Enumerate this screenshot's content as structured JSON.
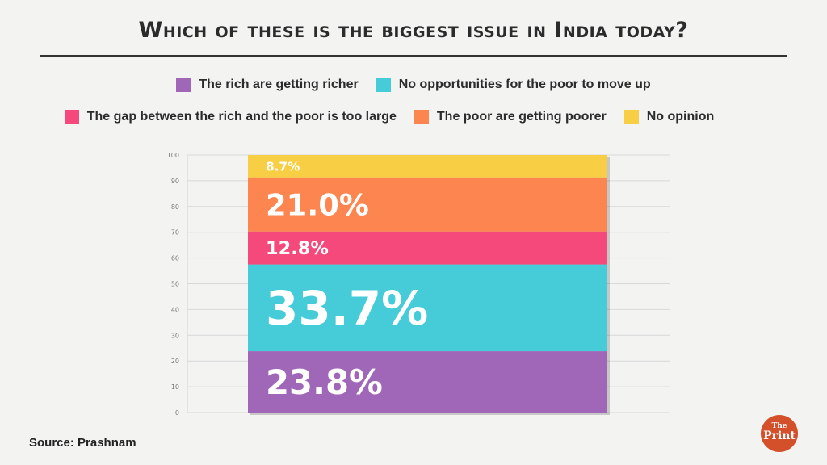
{
  "title": "Which of these is the biggest issue in India today?",
  "source": "Source: Prashnam",
  "logo": {
    "line1": "The",
    "line2": "Print",
    "color": "#d4502a"
  },
  "chart_data": {
    "type": "bar",
    "stacked": true,
    "title": "Which of these is the biggest issue in India today?",
    "ylim": [
      0,
      100
    ],
    "yticks": [
      0,
      10,
      20,
      30,
      40,
      50,
      60,
      70,
      80,
      90,
      100
    ],
    "grid": true,
    "legend_placement": "top",
    "series": [
      {
        "name": "The rich are getting richer",
        "value": 23.8,
        "label": "23.8%",
        "color": "#a066b8"
      },
      {
        "name": "No opportunities for the poor to move up",
        "value": 33.7,
        "label": "33.7%",
        "color": "#46cbd8"
      },
      {
        "name": "The gap between the rich and the poor is too large",
        "value": 12.8,
        "label": "12.8%",
        "color": "#f5497c"
      },
      {
        "name": "The poor are getting poorer",
        "value": 21.0,
        "label": "21.0%",
        "color": "#fd8650"
      },
      {
        "name": "No opinion",
        "value": 8.7,
        "label": "8.7%",
        "color": "#f8cf44"
      }
    ],
    "legend_rows": [
      [
        0,
        1
      ],
      [
        2,
        3,
        4
      ]
    ]
  }
}
